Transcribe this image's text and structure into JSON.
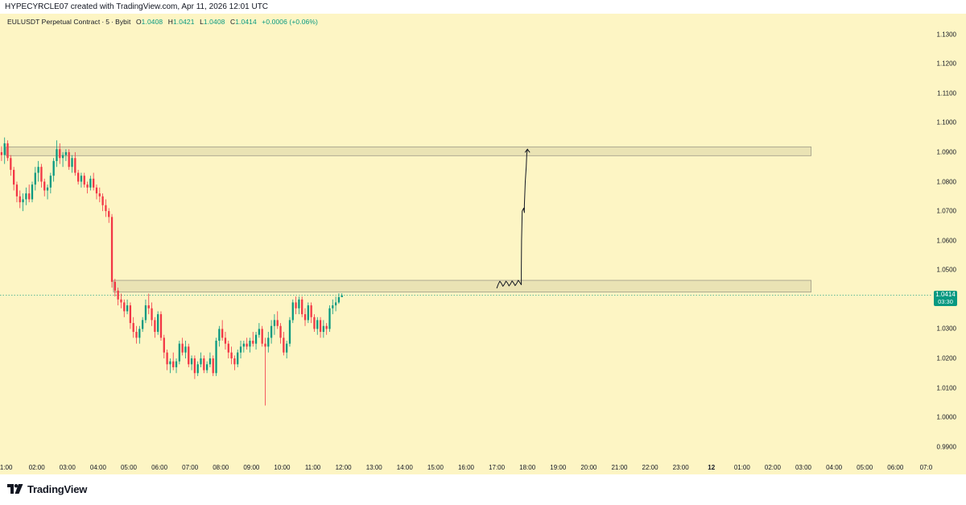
{
  "attribution": "HYPECYRCLE07 created with TradingView.com, Apr 11, 2026 12:01 UTC",
  "legend": {
    "symbol": "EULUSDT Perpetual Contract",
    "interval": "5",
    "exchange": "Bybit",
    "open_label": "O",
    "open": "1.0408",
    "high_label": "H",
    "high": "1.0421",
    "low_label": "L",
    "low": "1.0408",
    "close_label": "C",
    "close": "1.0414",
    "change": "+0.0006 (+0.06%)"
  },
  "price_axis": {
    "ticks": [
      "1.1300",
      "1.1200",
      "1.1100",
      "1.1000",
      "1.0900",
      "1.0800",
      "1.0700",
      "1.0600",
      "1.0500",
      "1.0300",
      "1.0200",
      "1.0100",
      "1.0000",
      "0.9900"
    ],
    "current_price": "1.0414",
    "countdown": "03:30"
  },
  "time_axis": {
    "ticks": [
      {
        "label": "1:00",
        "hour": 1
      },
      {
        "label": "02:00",
        "hour": 2
      },
      {
        "label": "03:00",
        "hour": 3
      },
      {
        "label": "04:00",
        "hour": 4
      },
      {
        "label": "05:00",
        "hour": 5
      },
      {
        "label": "06:00",
        "hour": 6
      },
      {
        "label": "07:00",
        "hour": 7
      },
      {
        "label": "08:00",
        "hour": 8
      },
      {
        "label": "09:00",
        "hour": 9
      },
      {
        "label": "10:00",
        "hour": 10
      },
      {
        "label": "11:00",
        "hour": 11
      },
      {
        "label": "12:00",
        "hour": 12
      },
      {
        "label": "13:00",
        "hour": 13
      },
      {
        "label": "14:00",
        "hour": 14
      },
      {
        "label": "15:00",
        "hour": 15
      },
      {
        "label": "16:00",
        "hour": 16
      },
      {
        "label": "17:00",
        "hour": 17
      },
      {
        "label": "18:00",
        "hour": 18
      },
      {
        "label": "19:00",
        "hour": 19
      },
      {
        "label": "20:00",
        "hour": 20
      },
      {
        "label": "21:00",
        "hour": 21
      },
      {
        "label": "22:00",
        "hour": 22
      },
      {
        "label": "23:00",
        "hour": 23
      },
      {
        "label": "12",
        "hour": 24,
        "bold": true
      },
      {
        "label": "01:00",
        "hour": 25
      },
      {
        "label": "02:00",
        "hour": 26
      },
      {
        "label": "03:00",
        "hour": 27
      },
      {
        "label": "04:00",
        "hour": 28
      },
      {
        "label": "05:00",
        "hour": 29
      },
      {
        "label": "06:00",
        "hour": 30
      },
      {
        "label": "07:0",
        "hour": 31
      }
    ]
  },
  "colors": {
    "background": "#fdf5c4",
    "up": "#089981",
    "down": "#f23645",
    "zone_fill": "#e8e1b3",
    "zone_border": "#9e9a86",
    "price_line": "#089981"
  },
  "chart_data": {
    "type": "candlestick",
    "interval_minutes": 5,
    "ylim": [
      0.985,
      1.137
    ],
    "xlim_hours": [
      0.8,
      31.2
    ],
    "current_price": 1.0414,
    "zones": [
      {
        "name": "upper-zone",
        "hour_start": 1.0,
        "hour_end": 27.25,
        "price_low": 1.0888,
        "price_high": 1.0918
      },
      {
        "name": "lower-zone",
        "hour_start": 4.5,
        "hour_end": 27.25,
        "price_low": 1.0425,
        "price_high": 1.0465
      }
    ],
    "projection_path": [
      [
        17.0,
        1.0438
      ],
      [
        17.05,
        1.0452
      ],
      [
        17.1,
        1.0462
      ],
      [
        17.15,
        1.0455
      ],
      [
        17.2,
        1.0445
      ],
      [
        17.25,
        1.0452
      ],
      [
        17.3,
        1.0462
      ],
      [
        17.35,
        1.0456
      ],
      [
        17.4,
        1.0446
      ],
      [
        17.45,
        1.0453
      ],
      [
        17.5,
        1.0463
      ],
      [
        17.55,
        1.0456
      ],
      [
        17.6,
        1.0447
      ],
      [
        17.65,
        1.0455
      ],
      [
        17.7,
        1.0465
      ],
      [
        17.75,
        1.0458
      ],
      [
        17.8,
        1.045
      ],
      [
        17.8,
        1.05
      ],
      [
        17.81,
        1.06
      ],
      [
        17.83,
        1.07
      ],
      [
        17.88,
        1.071
      ],
      [
        17.9,
        1.0695
      ],
      [
        17.9,
        1.072
      ],
      [
        17.93,
        1.08
      ],
      [
        17.96,
        1.085
      ],
      [
        17.98,
        1.0895
      ],
      [
        18.0,
        1.091
      ]
    ],
    "arrow_tip": [
      18.0,
      1.091
    ],
    "candles": [
      [
        0.85,
        1.09,
        1.092,
        1.087,
        1.089
      ],
      [
        0.95,
        1.089,
        1.095,
        1.086,
        1.093
      ],
      [
        1.05,
        1.093,
        1.094,
        1.087,
        1.088
      ],
      [
        1.15,
        1.088,
        1.089,
        1.082,
        1.084
      ],
      [
        1.25,
        1.084,
        1.085,
        1.077,
        1.079
      ],
      [
        1.35,
        1.079,
        1.08,
        1.073,
        1.075
      ],
      [
        1.45,
        1.075,
        1.077,
        1.071,
        1.073
      ],
      [
        1.55,
        1.073,
        1.076,
        1.07,
        1.074
      ],
      [
        1.65,
        1.074,
        1.078,
        1.072,
        1.076
      ],
      [
        1.75,
        1.076,
        1.079,
        1.073,
        1.074
      ],
      [
        1.85,
        1.074,
        1.08,
        1.073,
        1.079
      ],
      [
        1.95,
        1.079,
        1.085,
        1.077,
        1.083
      ],
      [
        2.05,
        1.083,
        1.087,
        1.08,
        1.085
      ],
      [
        2.15,
        1.085,
        1.086,
        1.078,
        1.08
      ],
      [
        2.25,
        1.08,
        1.081,
        1.075,
        1.077
      ],
      [
        2.35,
        1.077,
        1.079,
        1.074,
        1.078
      ],
      [
        2.45,
        1.078,
        1.083,
        1.076,
        1.082
      ],
      [
        2.55,
        1.082,
        1.088,
        1.08,
        1.087
      ],
      [
        2.65,
        1.087,
        1.094,
        1.085,
        1.091
      ],
      [
        2.75,
        1.091,
        1.093,
        1.086,
        1.088
      ],
      [
        2.85,
        1.088,
        1.09,
        1.085,
        1.089
      ],
      [
        2.95,
        1.089,
        1.091,
        1.087,
        1.09
      ],
      [
        3.05,
        1.09,
        1.091,
        1.084,
        1.085
      ],
      [
        3.15,
        1.085,
        1.089,
        1.083,
        1.088
      ],
      [
        3.25,
        1.088,
        1.09,
        1.082,
        1.083
      ],
      [
        3.35,
        1.083,
        1.084,
        1.079,
        1.08
      ],
      [
        3.45,
        1.08,
        1.083,
        1.078,
        1.082
      ],
      [
        3.55,
        1.082,
        1.083,
        1.078,
        1.079
      ],
      [
        3.65,
        1.079,
        1.08,
        1.076,
        1.078
      ],
      [
        3.75,
        1.078,
        1.082,
        1.077,
        1.081
      ],
      [
        3.85,
        1.081,
        1.083,
        1.077,
        1.078
      ],
      [
        3.95,
        1.078,
        1.079,
        1.074,
        1.076
      ],
      [
        4.05,
        1.076,
        1.078,
        1.073,
        1.075
      ],
      [
        4.15,
        1.075,
        1.076,
        1.07,
        1.072
      ],
      [
        4.25,
        1.072,
        1.074,
        1.068,
        1.07
      ],
      [
        4.35,
        1.07,
        1.071,
        1.066,
        1.068
      ],
      [
        4.45,
        1.068,
        1.069,
        1.044,
        1.046
      ],
      [
        4.55,
        1.046,
        1.047,
        1.041,
        1.043
      ],
      [
        4.65,
        1.043,
        1.044,
        1.038,
        1.04
      ],
      [
        4.75,
        1.04,
        1.042,
        1.037,
        1.039
      ],
      [
        4.85,
        1.039,
        1.04,
        1.034,
        1.036
      ],
      [
        4.95,
        1.036,
        1.04,
        1.035,
        1.038
      ],
      [
        5.05,
        1.038,
        1.039,
        1.03,
        1.032
      ],
      [
        5.15,
        1.032,
        1.034,
        1.027,
        1.029
      ],
      [
        5.25,
        1.029,
        1.031,
        1.025,
        1.027
      ],
      [
        5.35,
        1.027,
        1.031,
        1.025,
        1.03
      ],
      [
        5.45,
        1.03,
        1.034,
        1.029,
        1.033
      ],
      [
        5.55,
        1.033,
        1.04,
        1.032,
        1.038
      ],
      [
        5.65,
        1.038,
        1.042,
        1.035,
        1.037
      ],
      [
        5.75,
        1.037,
        1.039,
        1.031,
        1.033
      ],
      [
        5.85,
        1.033,
        1.034,
        1.027,
        1.029
      ],
      [
        5.95,
        1.029,
        1.036,
        1.028,
        1.035
      ],
      [
        6.05,
        1.035,
        1.036,
        1.026,
        1.027
      ],
      [
        6.15,
        1.027,
        1.028,
        1.02,
        1.022
      ],
      [
        6.25,
        1.022,
        1.023,
        1.016,
        1.018
      ],
      [
        6.35,
        1.018,
        1.02,
        1.015,
        1.019
      ],
      [
        6.45,
        1.019,
        1.022,
        1.016,
        1.017
      ],
      [
        6.55,
        1.017,
        1.02,
        1.015,
        1.019
      ],
      [
        6.65,
        1.019,
        1.026,
        1.018,
        1.025
      ],
      [
        6.75,
        1.025,
        1.027,
        1.021,
        1.022
      ],
      [
        6.85,
        1.022,
        1.026,
        1.02,
        1.024
      ],
      [
        6.95,
        1.024,
        1.025,
        1.017,
        1.018
      ],
      [
        7.05,
        1.018,
        1.021,
        1.016,
        1.02
      ],
      [
        7.15,
        1.02,
        1.021,
        1.013,
        1.015
      ],
      [
        7.25,
        1.015,
        1.019,
        1.014,
        1.018
      ],
      [
        7.35,
        1.018,
        1.022,
        1.017,
        1.02
      ],
      [
        7.45,
        1.02,
        1.021,
        1.015,
        1.016
      ],
      [
        7.55,
        1.016,
        1.019,
        1.015,
        1.018
      ],
      [
        7.65,
        1.018,
        1.022,
        1.017,
        1.02
      ],
      [
        7.75,
        1.02,
        1.021,
        1.014,
        1.015
      ],
      [
        7.85,
        1.015,
        1.027,
        1.014,
        1.026
      ],
      [
        7.95,
        1.026,
        1.031,
        1.024,
        1.03
      ],
      [
        8.05,
        1.03,
        1.033,
        1.026,
        1.027
      ],
      [
        8.15,
        1.027,
        1.029,
        1.023,
        1.025
      ],
      [
        8.25,
        1.025,
        1.026,
        1.02,
        1.022
      ],
      [
        8.35,
        1.022,
        1.024,
        1.018,
        1.02
      ],
      [
        8.45,
        1.02,
        1.021,
        1.016,
        1.018
      ],
      [
        8.55,
        1.018,
        1.023,
        1.017,
        1.022
      ],
      [
        8.65,
        1.022,
        1.026,
        1.02,
        1.024
      ],
      [
        8.75,
        1.024,
        1.026,
        1.022,
        1.025
      ],
      [
        8.85,
        1.025,
        1.027,
        1.023,
        1.024
      ],
      [
        8.95,
        1.024,
        1.027,
        1.022,
        1.026
      ],
      [
        9.05,
        1.026,
        1.029,
        1.024,
        1.025
      ],
      [
        9.15,
        1.025,
        1.029,
        1.023,
        1.028
      ],
      [
        9.25,
        1.028,
        1.032,
        1.027,
        1.03
      ],
      [
        9.35,
        1.03,
        1.031,
        1.024,
        1.025
      ],
      [
        9.45,
        1.025,
        1.027,
        1.004,
        1.024
      ],
      [
        9.55,
        1.024,
        1.029,
        1.022,
        1.027
      ],
      [
        9.65,
        1.027,
        1.033,
        1.025,
        1.031
      ],
      [
        9.75,
        1.031,
        1.035,
        1.028,
        1.033
      ],
      [
        9.85,
        1.033,
        1.036,
        1.03,
        1.031
      ],
      [
        9.95,
        1.031,
        1.032,
        1.025,
        1.027
      ],
      [
        10.05,
        1.027,
        1.029,
        1.021,
        1.022
      ],
      [
        10.15,
        1.022,
        1.026,
        1.02,
        1.025
      ],
      [
        10.25,
        1.025,
        1.034,
        1.024,
        1.033
      ],
      [
        10.35,
        1.033,
        1.04,
        1.032,
        1.039
      ],
      [
        10.45,
        1.039,
        1.041,
        1.035,
        1.037
      ],
      [
        10.55,
        1.037,
        1.041,
        1.035,
        1.04
      ],
      [
        10.65,
        1.04,
        1.041,
        1.034,
        1.035
      ],
      [
        10.75,
        1.035,
        1.037,
        1.031,
        1.033
      ],
      [
        10.85,
        1.033,
        1.039,
        1.032,
        1.038
      ],
      [
        10.95,
        1.038,
        1.039,
        1.032,
        1.034
      ],
      [
        11.05,
        1.034,
        1.035,
        1.029,
        1.03
      ],
      [
        11.15,
        1.03,
        1.034,
        1.028,
        1.033
      ],
      [
        11.25,
        1.033,
        1.034,
        1.027,
        1.029
      ],
      [
        11.35,
        1.029,
        1.033,
        1.027,
        1.031
      ],
      [
        11.45,
        1.031,
        1.032,
        1.028,
        1.03
      ],
      [
        11.55,
        1.03,
        1.038,
        1.029,
        1.037
      ],
      [
        11.65,
        1.037,
        1.04,
        1.035,
        1.038
      ],
      [
        11.75,
        1.038,
        1.041,
        1.036,
        1.039
      ],
      [
        11.85,
        1.039,
        1.0421,
        1.0385,
        1.0408
      ],
      [
        11.95,
        1.0408,
        1.0421,
        1.0408,
        1.0414
      ]
    ]
  }
}
